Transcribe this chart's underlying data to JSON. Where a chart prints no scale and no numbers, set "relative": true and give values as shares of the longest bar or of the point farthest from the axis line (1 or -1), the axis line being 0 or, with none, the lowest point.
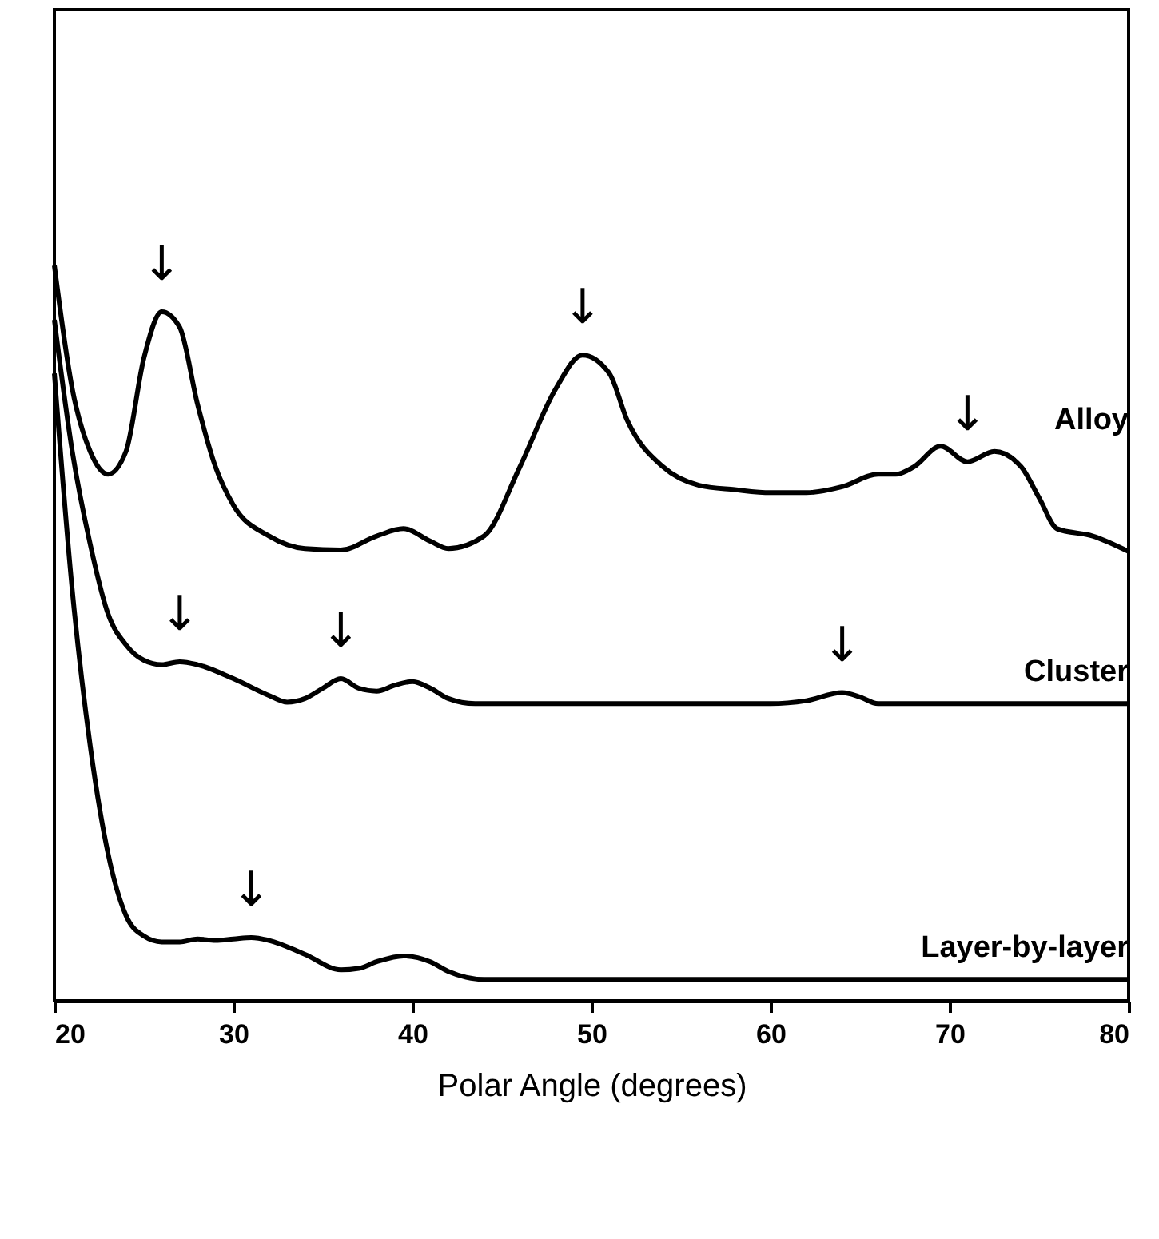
{
  "chart_data": {
    "type": "line",
    "relative": true,
    "xlabel": "Polar Angle (degrees)",
    "xlim": [
      20,
      80
    ],
    "xticks": [
      20,
      30,
      40,
      50,
      60,
      70,
      80
    ],
    "legend": false,
    "marker": "none",
    "line_style": "solid",
    "grid": false,
    "series": [
      {
        "name": "Alloy",
        "color": "#000000",
        "x": [
          20,
          21,
          22,
          23,
          24,
          25,
          26,
          27,
          28,
          29,
          30,
          32,
          34,
          36,
          38,
          39.5,
          41,
          42,
          44,
          46,
          48,
          49.5,
          51,
          52,
          54,
          56,
          58,
          60,
          62,
          64,
          66,
          67,
          68,
          69.5,
          71,
          72.5,
          74,
          75,
          76,
          78,
          80
        ],
        "values": [
          1.0,
          0.832,
          0.747,
          0.716,
          0.747,
          0.874,
          0.937,
          0.916,
          0.811,
          0.726,
          0.674,
          0.632,
          0.615,
          0.613,
          0.632,
          0.642,
          0.625,
          0.615,
          0.632,
          0.726,
          0.832,
          0.878,
          0.853,
          0.789,
          0.726,
          0.701,
          0.695,
          0.691,
          0.691,
          0.699,
          0.716,
          0.716,
          0.726,
          0.754,
          0.733,
          0.747,
          0.726,
          0.684,
          0.642,
          0.632,
          0.611
        ]
      },
      {
        "name": "Cluster",
        "color": "#000000",
        "x": [
          20,
          21,
          22,
          23,
          24,
          25,
          26,
          27,
          28,
          30,
          32,
          33,
          34,
          35,
          36,
          37,
          38,
          39,
          40,
          41,
          42,
          43.5,
          60,
          62,
          64,
          65,
          66,
          80
        ],
        "values": [
          0.926,
          0.747,
          0.621,
          0.526,
          0.484,
          0.463,
          0.457,
          0.461,
          0.457,
          0.438,
          0.415,
          0.406,
          0.411,
          0.425,
          0.438,
          0.425,
          0.421,
          0.429,
          0.434,
          0.425,
          0.411,
          0.404,
          0.404,
          0.408,
          0.419,
          0.413,
          0.404,
          0.404
        ]
      },
      {
        "name": "Layer-by-layer",
        "color": "#000000",
        "x": [
          20,
          21,
          22,
          23,
          24,
          25,
          26,
          27,
          28,
          29,
          30,
          31,
          32,
          34,
          36,
          37,
          38,
          39.5,
          41,
          42,
          43,
          44,
          80
        ],
        "values": [
          0.853,
          0.558,
          0.347,
          0.2,
          0.116,
          0.088,
          0.08,
          0.08,
          0.084,
          0.082,
          0.084,
          0.086,
          0.082,
          0.063,
          0.042,
          0.044,
          0.053,
          0.061,
          0.053,
          0.04,
          0.032,
          0.029,
          0.029
        ]
      }
    ],
    "annotations": [
      {
        "text": "↓",
        "x": 26,
        "y": 0.937
      },
      {
        "text": "↓",
        "x": 49.5,
        "y": 0.878
      },
      {
        "text": "↓",
        "x": 71,
        "y": 0.733
      },
      {
        "text": "↓",
        "x": 27,
        "y": 0.461
      },
      {
        "text": "↓",
        "x": 36,
        "y": 0.438
      },
      {
        "text": "↓",
        "x": 64,
        "y": 0.419
      },
      {
        "text": "↓",
        "x": 31,
        "y": 0.086
      }
    ]
  }
}
